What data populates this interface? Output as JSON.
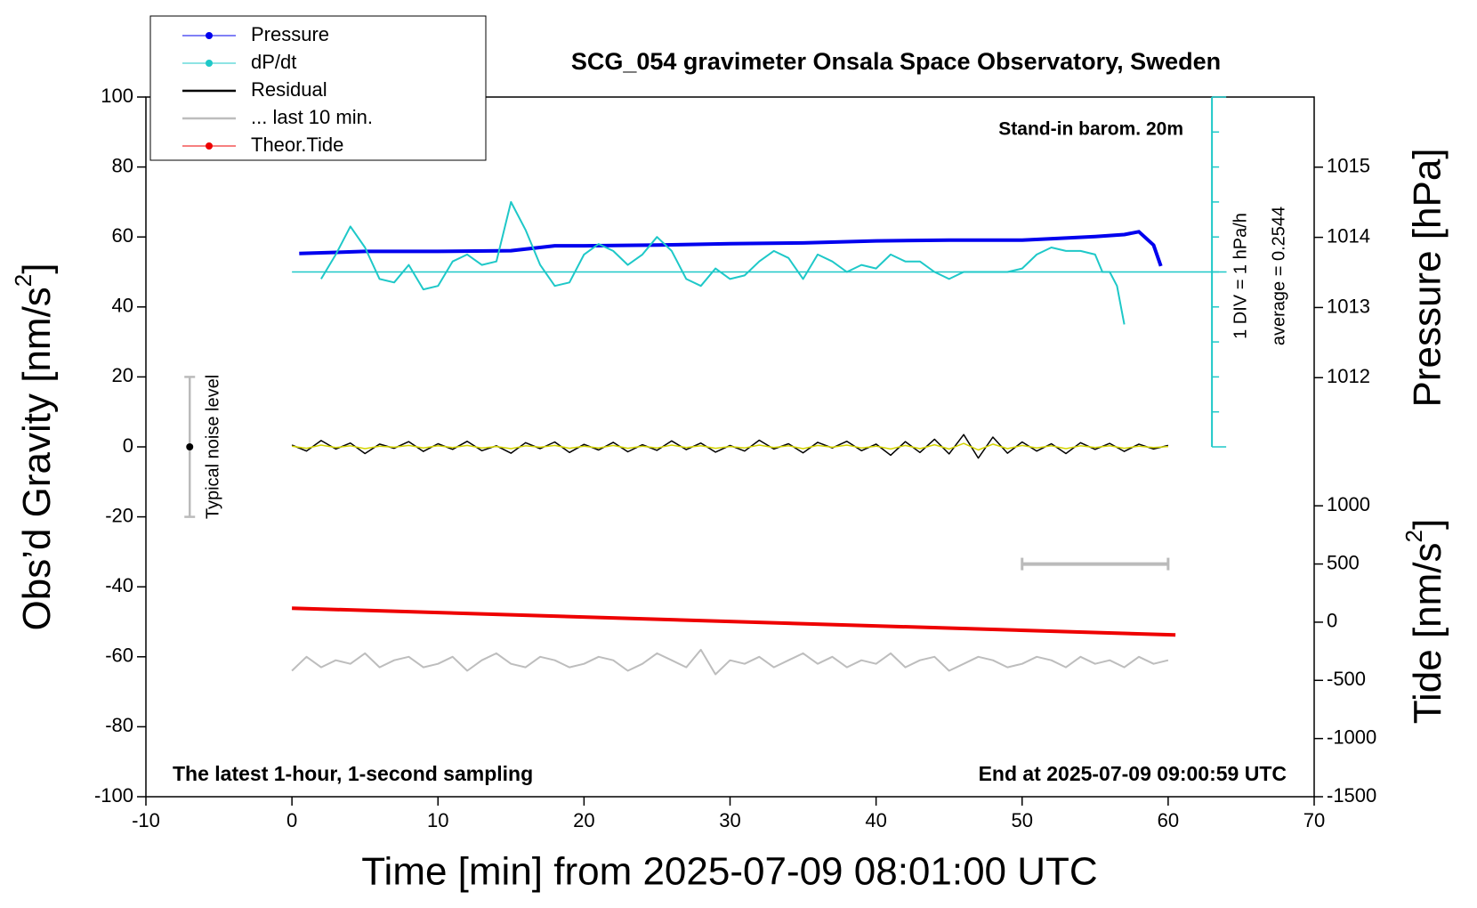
{
  "chart_data": {
    "type": "line",
    "title": "SCG_054 gravimeter Onsala Space Observatory, Sweden",
    "xlabel": "Time [min] from 2025-07-09 08:01:00 UTC",
    "ylabel": [
      "Obs’d Gravity [nm/s",
      "2",
      "]"
    ],
    "y2label": "Pressure [hPa]",
    "y3label": [
      "Tide [nm/s",
      "2",
      "]"
    ],
    "annotations": [
      "Stand-in barom. 20m",
      "The latest 1-hour, 1-second sampling",
      "End at 2025-07-09 09:00:59 UTC",
      "1 DIV = 1 hPa/h",
      "average = 0.2544",
      "Typical noise level"
    ],
    "xlim": [
      -10,
      70
    ],
    "xticks": [
      -10,
      0,
      10,
      20,
      30,
      40,
      50,
      60,
      70
    ],
    "ylim": [
      -100,
      100
    ],
    "yticks": [
      -100,
      -80,
      -60,
      -40,
      -20,
      0,
      20,
      40,
      60,
      80,
      100
    ],
    "y2lim": [
      1006.027,
      1016
    ],
    "y2ticks": [
      1012,
      1013,
      1014,
      1015
    ],
    "y3lim": [
      -1500,
      4513
    ],
    "y3ticks": [
      -1500,
      -1000,
      -500,
      0,
      500,
      1000
    ],
    "legend": "upper left",
    "series": [
      {
        "name": "Pressure",
        "color": "#0000ee",
        "axis": "y2",
        "width": 4,
        "legend_marker": true,
        "x": [
          0.5,
          5,
          10,
          15,
          18,
          20,
          25,
          30,
          35,
          40,
          45,
          50,
          53,
          55,
          57,
          58,
          59,
          59.5
        ],
        "values": [
          1013.77,
          1013.8,
          1013.8,
          1013.81,
          1013.88,
          1013.88,
          1013.89,
          1013.91,
          1013.92,
          1013.95,
          1013.96,
          1013.96,
          1013.99,
          1014.01,
          1014.04,
          1014.08,
          1013.89,
          1013.59
        ]
      },
      {
        "name": "dP/dt",
        "color": "#1ec8c8",
        "width": 2,
        "legend_marker": true,
        "x": [
          2,
          3,
          4,
          5,
          6,
          7,
          8,
          9,
          10,
          11,
          12,
          13,
          14,
          15,
          16,
          17,
          18,
          19,
          20,
          21,
          22,
          23,
          24,
          25,
          26,
          27,
          28,
          29,
          30,
          31,
          32,
          33,
          34,
          35,
          36,
          37,
          38,
          39,
          40,
          41,
          42,
          43,
          44,
          45,
          46,
          47,
          48,
          49,
          50,
          51,
          52,
          53,
          54,
          55,
          55.5,
          56,
          56.5,
          57
        ],
        "values": [
          48,
          55,
          63,
          57,
          48,
          47,
          52,
          45,
          46,
          53,
          55,
          52,
          53,
          70,
          62,
          52,
          46,
          47,
          55,
          58,
          56,
          52,
          55,
          60,
          56,
          48,
          46,
          51,
          48,
          49,
          53,
          56,
          54,
          48,
          55,
          53,
          50,
          52,
          51,
          55,
          53,
          53,
          50,
          48,
          50,
          50,
          50,
          50,
          51,
          55,
          57,
          56,
          56,
          55,
          50,
          50,
          46,
          35
        ]
      },
      {
        "name": "Residual",
        "color": "#000000",
        "width": 1.5,
        "legend_marker": false,
        "x": [
          0,
          1,
          2,
          3,
          4,
          5,
          6,
          7,
          8,
          9,
          10,
          11,
          12,
          13,
          14,
          15,
          16,
          17,
          18,
          19,
          20,
          21,
          22,
          23,
          24,
          25,
          26,
          27,
          28,
          29,
          30,
          31,
          32,
          33,
          34,
          35,
          36,
          37,
          38,
          39,
          40,
          41,
          42,
          43,
          44,
          45,
          46,
          47,
          48,
          49,
          50,
          51,
          52,
          53,
          54,
          55,
          56,
          57,
          58,
          59,
          60
        ],
        "values": [
          0.5,
          -1.2,
          1.8,
          -0.6,
          1.1,
          -1.9,
          0.8,
          -0.4,
          1.5,
          -1.3,
          0.9,
          -0.7,
          1.6,
          -1.1,
          0.3,
          -1.8,
          1.2,
          -0.5,
          1.4,
          -1.6,
          0.7,
          -0.9,
          1.3,
          -1.4,
          0.6,
          -1.0,
          1.7,
          -0.8,
          1.1,
          -1.5,
          0.4,
          -1.2,
          1.9,
          -0.6,
          0.9,
          -1.7,
          1.3,
          -0.3,
          1.6,
          -1.1,
          0.8,
          -2.4,
          1.5,
          -1.6,
          2.2,
          -2.0,
          3.5,
          -3.2,
          2.8,
          -1.8,
          1.4,
          -1.2,
          0.9,
          -1.9,
          1.2,
          -0.7,
          1.0,
          -1.3,
          0.8,
          -0.6,
          0.4
        ]
      },
      {
        "color": "#d4d400",
        "width": 1.5,
        "x": [
          0,
          1,
          2,
          3,
          4,
          5,
          6,
          7,
          8,
          9,
          10,
          11,
          12,
          13,
          14,
          15,
          16,
          17,
          18,
          19,
          20,
          21,
          22,
          23,
          24,
          25,
          26,
          27,
          28,
          29,
          30,
          31,
          32,
          33,
          34,
          35,
          36,
          37,
          38,
          39,
          40,
          41,
          42,
          43,
          44,
          45,
          46,
          47,
          48,
          49,
          50,
          51,
          52,
          53,
          54,
          55,
          56,
          57,
          58,
          59,
          60
        ],
        "values": [
          0.2,
          -0.4,
          0.5,
          -0.2,
          0.3,
          -0.5,
          0.2,
          -0.1,
          0.4,
          -0.3,
          0.3,
          -0.2,
          0.4,
          -0.3,
          0.1,
          -0.5,
          0.3,
          -0.1,
          0.4,
          -0.4,
          0.2,
          -0.3,
          0.4,
          -0.4,
          0.2,
          -0.3,
          0.5,
          -0.2,
          0.3,
          -0.4,
          0.1,
          -0.3,
          0.5,
          -0.2,
          0.3,
          -0.5,
          0.4,
          -0.1,
          0.5,
          -0.3,
          0.2,
          -0.6,
          0.4,
          -0.5,
          0.6,
          -0.6,
          1.0,
          -0.9,
          0.8,
          -0.5,
          0.4,
          -0.3,
          0.3,
          -0.5,
          0.3,
          -0.2,
          0.3,
          -0.4,
          0.2,
          -0.2,
          0.1
        ]
      },
      {
        "name": "... last 10 min.",
        "color": "#bdbdbd",
        "width": 2,
        "legend_marker": false,
        "x": [
          0,
          1,
          2,
          3,
          4,
          5,
          6,
          7,
          8,
          9,
          10,
          11,
          12,
          13,
          14,
          15,
          16,
          17,
          18,
          19,
          20,
          21,
          22,
          23,
          24,
          25,
          26,
          27,
          28,
          29,
          30,
          31,
          32,
          33,
          34,
          35,
          36,
          37,
          38,
          39,
          40,
          41,
          42,
          43,
          44,
          45,
          46,
          47,
          48,
          49,
          50,
          51,
          52,
          53,
          54,
          55,
          56,
          57,
          58,
          59,
          60
        ],
        "values": [
          -64,
          -60,
          -63,
          -61,
          -62,
          -59,
          -63,
          -61,
          -60,
          -63,
          -62,
          -60,
          -64,
          -61,
          -59,
          -62,
          -63,
          -60,
          -61,
          -63,
          -62,
          -60,
          -61,
          -64,
          -62,
          -59,
          -61,
          -63,
          -58,
          -65,
          -61,
          -62,
          -60,
          -63,
          -61,
          -59,
          -62,
          -60,
          -63,
          -61,
          -62,
          -59,
          -63,
          -61,
          -60,
          -64,
          -62,
          -60,
          -61,
          -63,
          -62,
          -60,
          -61,
          -63,
          -60,
          -62,
          -61,
          -63,
          -60,
          -62,
          -61
        ]
      },
      {
        "name": "Theor.Tide",
        "color": "#ee0000",
        "axis": "y3",
        "width": 4,
        "legend_marker": true,
        "x": [
          0,
          60.5
        ],
        "values": [
          120,
          -110
        ]
      }
    ],
    "dpdt_scale": {
      "x": 63,
      "ticks": [
        0,
        10,
        20,
        30,
        40,
        50,
        60,
        70,
        80,
        90,
        100
      ],
      "average_line": 50,
      "line_x": [
        0,
        64
      ]
    },
    "noise_bar": {
      "x": -7,
      "y": 0,
      "error": 20
    },
    "ten_min_bar": {
      "x": [
        50,
        60
      ],
      "y": 500
    }
  }
}
